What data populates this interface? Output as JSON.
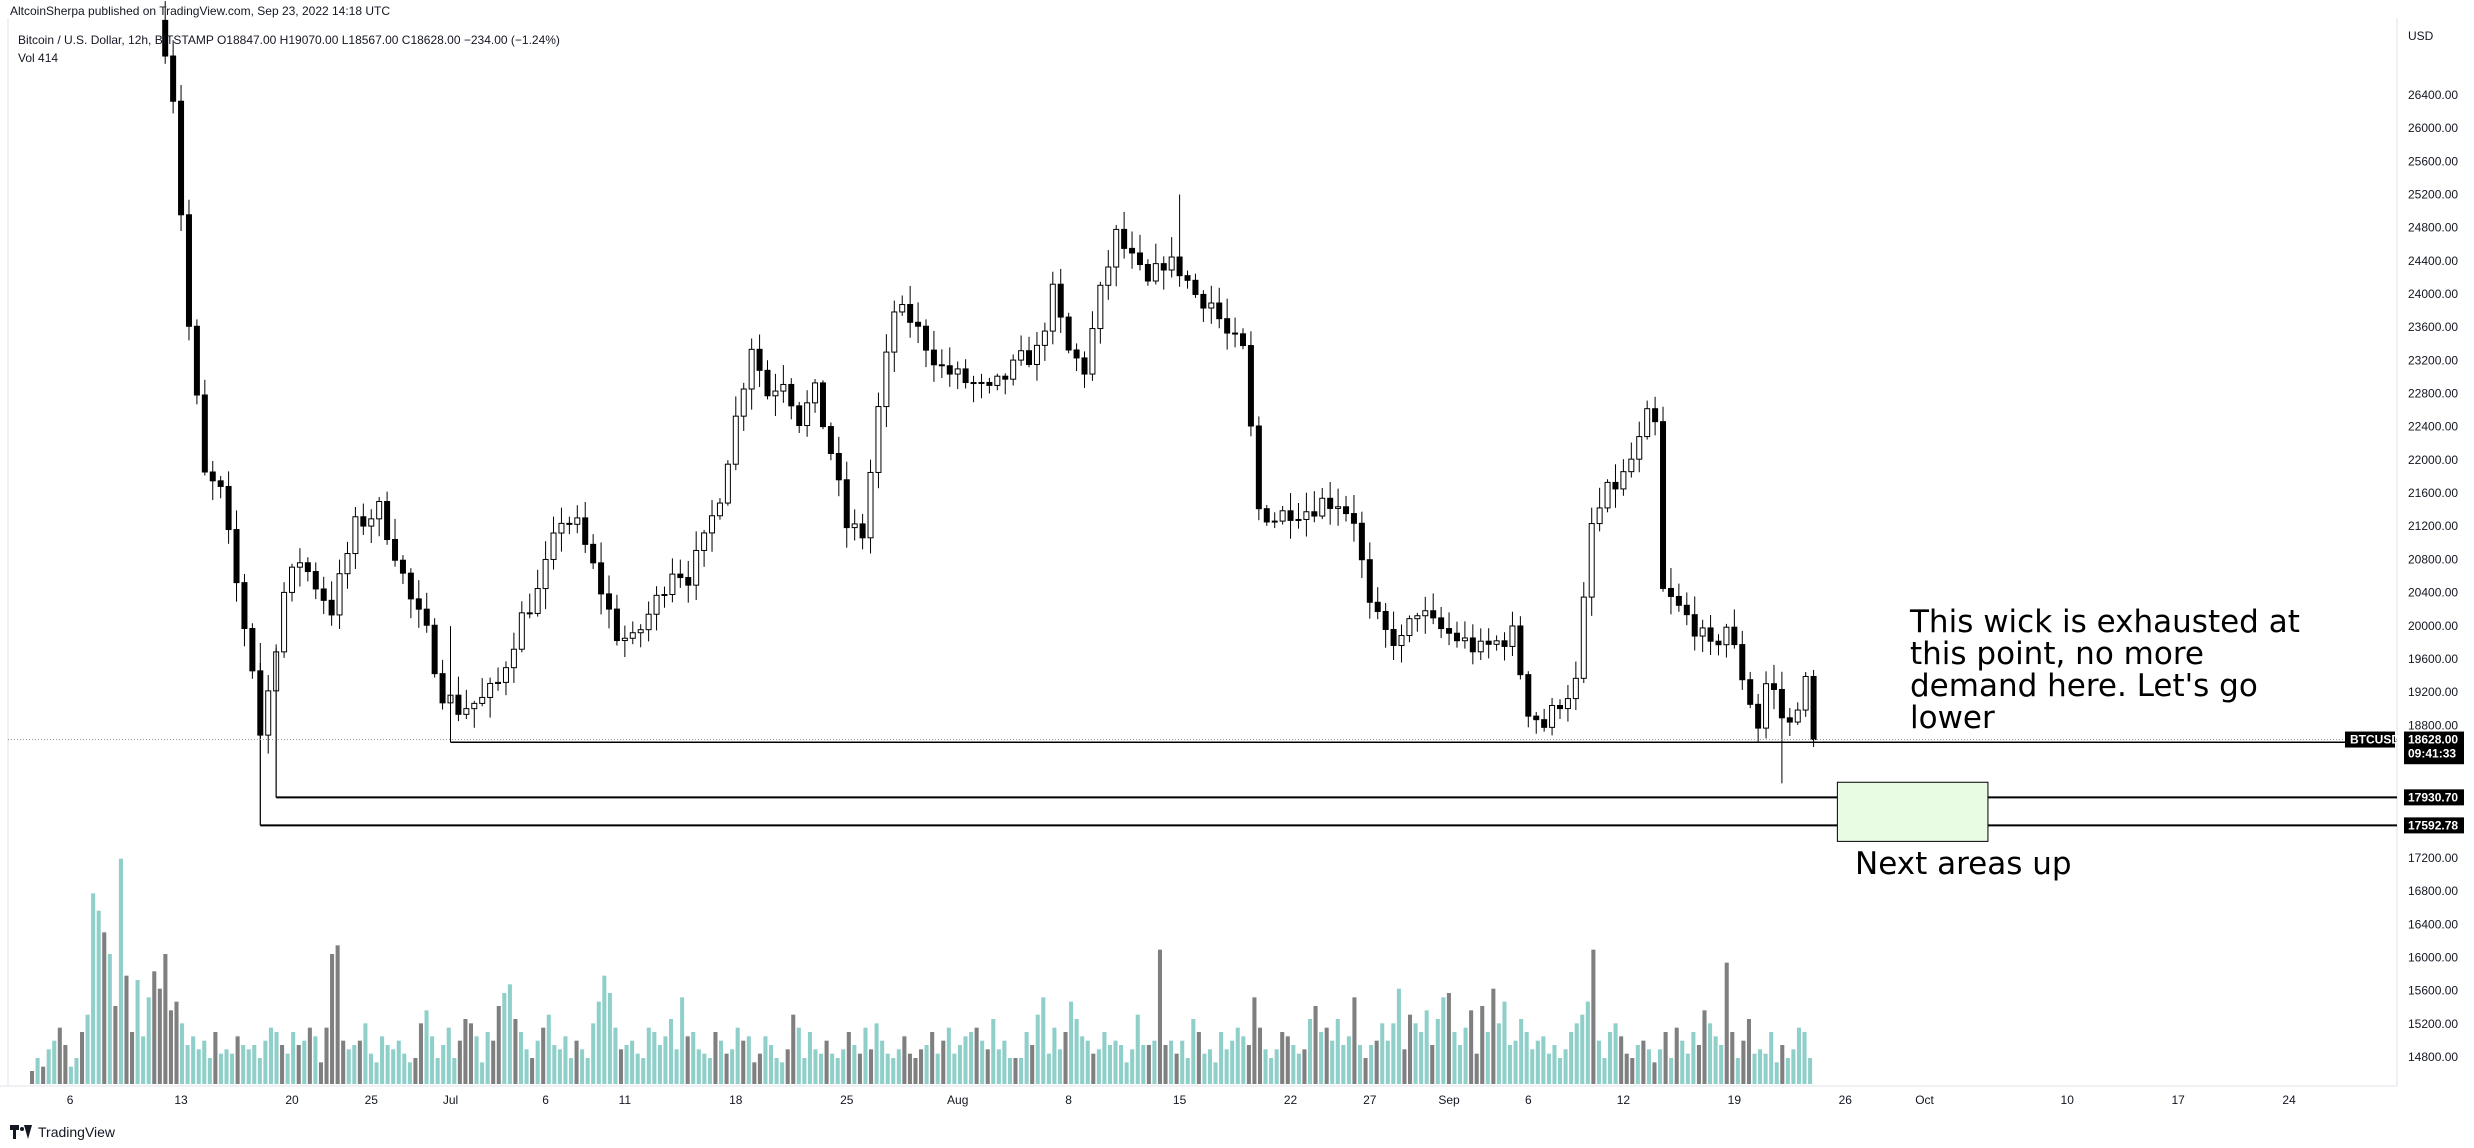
{
  "header": {
    "published_by": "AltcoinSherpa published on TradingView.com, Sep 23, 2022 14:18 UTC",
    "symbol_line": "Bitcoin / U.S. Dollar, 12h, BITSTAMP  O18847.00  H19070.00  L18567.00  C18628.00  −234.00 (−1.24%)",
    "volume_line": "Vol  414"
  },
  "footer": {
    "brand": "TradingView"
  },
  "colors": {
    "up_body": "#ffffff",
    "down_body": "#000000",
    "wick": "#000000",
    "vol_up": "#8fcfc9",
    "vol_down": "#7f7f7f",
    "zone_fill": "#e8fbe3",
    "zone_stroke": "#000000"
  },
  "chart_data": {
    "type": "candlestick",
    "symbol": "BTCUSD",
    "interval": "12h",
    "exchange": "BITSTAMP",
    "currency_label": "USD",
    "ylim": [
      14200,
      27200
    ],
    "y_ticks": [
      "26400.00",
      "26000.00",
      "25600.00",
      "25200.00",
      "24800.00",
      "24400.00",
      "24000.00",
      "23600.00",
      "23200.00",
      "22800.00",
      "22400.00",
      "22000.00",
      "21600.00",
      "21200.00",
      "20800.00",
      "20400.00",
      "20000.00",
      "19600.00",
      "19200.00",
      "18800.00",
      "17200.00",
      "16800.00",
      "16400.00",
      "16000.00",
      "15600.00",
      "15200.00",
      "14800.00"
    ],
    "x_ticks": [
      {
        "label": "6",
        "day": 6
      },
      {
        "label": "13",
        "day": 13
      },
      {
        "label": "20",
        "day": 20
      },
      {
        "label": "25",
        "day": 25
      },
      {
        "label": "Jul",
        "day": 30
      },
      {
        "label": "6",
        "day": 36
      },
      {
        "label": "11",
        "day": 41
      },
      {
        "label": "18",
        "day": 48
      },
      {
        "label": "25",
        "day": 55
      },
      {
        "label": "Aug",
        "day": 62
      },
      {
        "label": "8",
        "day": 69
      },
      {
        "label": "15",
        "day": 76
      },
      {
        "label": "22",
        "day": 83
      },
      {
        "label": "27",
        "day": 88
      },
      {
        "label": "Sep",
        "day": 93
      },
      {
        "label": "6",
        "day": 98
      },
      {
        "label": "12",
        "day": 104
      },
      {
        "label": "19",
        "day": 111
      },
      {
        "label": "26",
        "day": 118
      },
      {
        "label": "Oct",
        "day": 123
      },
      {
        "label": "10",
        "day": 132
      },
      {
        "label": "17",
        "day": 139
      },
      {
        "label": "24",
        "day": 146
      }
    ],
    "anchors": [
      {
        "day": 12,
        "price": 27000
      },
      {
        "day": 12.5,
        "price": 26400
      },
      {
        "day": 13.5,
        "price": 23600
      },
      {
        "day": 14.5,
        "price": 21800
      },
      {
        "day": 15.5,
        "price": 21600
      },
      {
        "day": 16.5,
        "price": 20500
      },
      {
        "day": 17.5,
        "price": 19500
      },
      {
        "day": 18,
        "price": 18700
      },
      {
        "day": 18.5,
        "price": 19200
      },
      {
        "day": 19.5,
        "price": 20400
      },
      {
        "day": 20.5,
        "price": 20800
      },
      {
        "day": 21.5,
        "price": 20500
      },
      {
        "day": 22.5,
        "price": 20200
      },
      {
        "day": 24,
        "price": 21200
      },
      {
        "day": 25.5,
        "price": 21400
      },
      {
        "day": 26.5,
        "price": 20900
      },
      {
        "day": 27.5,
        "price": 20300
      },
      {
        "day": 28.5,
        "price": 19900
      },
      {
        "day": 29.5,
        "price": 19200
      },
      {
        "day": 30.5,
        "price": 19000
      },
      {
        "day": 32,
        "price": 19100
      },
      {
        "day": 33,
        "price": 19300
      },
      {
        "day": 34.5,
        "price": 20100
      },
      {
        "day": 35.5,
        "price": 20400
      },
      {
        "day": 37,
        "price": 21300
      },
      {
        "day": 38,
        "price": 21200
      },
      {
        "day": 39,
        "price": 20700
      },
      {
        "day": 40.5,
        "price": 19900
      },
      {
        "day": 41.5,
        "price": 19800
      },
      {
        "day": 43,
        "price": 20300
      },
      {
        "day": 44,
        "price": 20700
      },
      {
        "day": 45,
        "price": 20600
      },
      {
        "day": 46,
        "price": 21000
      },
      {
        "day": 47,
        "price": 21600
      },
      {
        "day": 48,
        "price": 22500
      },
      {
        "day": 49,
        "price": 23400
      },
      {
        "day": 50,
        "price": 22800
      },
      {
        "day": 51,
        "price": 23000
      },
      {
        "day": 52,
        "price": 22500
      },
      {
        "day": 53,
        "price": 22800
      },
      {
        "day": 54,
        "price": 22100
      },
      {
        "day": 55,
        "price": 21200
      },
      {
        "day": 56,
        "price": 21100
      },
      {
        "day": 57,
        "price": 22600
      },
      {
        "day": 58,
        "price": 23800
      },
      {
        "day": 59,
        "price": 23700
      },
      {
        "day": 60,
        "price": 23400
      },
      {
        "day": 61,
        "price": 23100
      },
      {
        "day": 62,
        "price": 23000
      },
      {
        "day": 63,
        "price": 22900
      },
      {
        "day": 64,
        "price": 22800
      },
      {
        "day": 65,
        "price": 23000
      },
      {
        "day": 66,
        "price": 23200
      },
      {
        "day": 67,
        "price": 23300
      },
      {
        "day": 68,
        "price": 24000
      },
      {
        "day": 69,
        "price": 23300
      },
      {
        "day": 70,
        "price": 23100
      },
      {
        "day": 71,
        "price": 24000
      },
      {
        "day": 72,
        "price": 24700
      },
      {
        "day": 73,
        "price": 24400
      },
      {
        "day": 74,
        "price": 24100
      },
      {
        "day": 75,
        "price": 24400
      },
      {
        "day": 76,
        "price": 24300
      },
      {
        "day": 77,
        "price": 24000
      },
      {
        "day": 78,
        "price": 23900
      },
      {
        "day": 79,
        "price": 23500
      },
      {
        "day": 80,
        "price": 23300
      },
      {
        "day": 81,
        "price": 21400
      },
      {
        "day": 82,
        "price": 21300
      },
      {
        "day": 83,
        "price": 21400
      },
      {
        "day": 84,
        "price": 21400
      },
      {
        "day": 85,
        "price": 21500
      },
      {
        "day": 86,
        "price": 21500
      },
      {
        "day": 87,
        "price": 21300
      },
      {
        "day": 88,
        "price": 20200
      },
      {
        "day": 89,
        "price": 19900
      },
      {
        "day": 90,
        "price": 19800
      },
      {
        "day": 91,
        "price": 20200
      },
      {
        "day": 92,
        "price": 20000
      },
      {
        "day": 93,
        "price": 19900
      },
      {
        "day": 94,
        "price": 19800
      },
      {
        "day": 95,
        "price": 19700
      },
      {
        "day": 96,
        "price": 19800
      },
      {
        "day": 97,
        "price": 19900
      },
      {
        "day": 98,
        "price": 19000
      },
      {
        "day": 99,
        "price": 18800
      },
      {
        "day": 100,
        "price": 19100
      },
      {
        "day": 101,
        "price": 19300
      },
      {
        "day": 102,
        "price": 21200
      },
      {
        "day": 103,
        "price": 21600
      },
      {
        "day": 104,
        "price": 21800
      },
      {
        "day": 105,
        "price": 22200
      },
      {
        "day": 105.5,
        "price": 22500
      },
      {
        "day": 106,
        "price": 22400
      },
      {
        "day": 106.5,
        "price": 20400
      },
      {
        "day": 107.5,
        "price": 20200
      },
      {
        "day": 108.5,
        "price": 20000
      },
      {
        "day": 109.5,
        "price": 19700
      },
      {
        "day": 110.5,
        "price": 20000
      },
      {
        "day": 111.5,
        "price": 19400
      },
      {
        "day": 112.5,
        "price": 18800
      },
      {
        "day": 113,
        "price": 19300
      },
      {
        "day": 113.5,
        "price": 19200
      },
      {
        "day": 114,
        "price": 18900
      },
      {
        "day": 114.5,
        "price": 18800
      },
      {
        "day": 115,
        "price": 19100
      },
      {
        "day": 115.5,
        "price": 19300
      },
      {
        "day": 116,
        "price": 18628
      }
    ],
    "volume_axis": {
      "max": 60
    },
    "volumes": [
      3,
      6,
      4,
      8,
      10,
      13,
      9,
      4,
      6,
      12,
      16,
      44,
      40,
      35,
      30,
      18,
      52,
      25,
      12,
      24,
      11,
      20,
      26,
      22,
      30,
      17,
      19,
      14,
      9,
      11,
      8,
      10,
      6,
      12,
      7,
      8,
      7,
      11,
      9,
      8,
      9,
      6,
      10,
      13,
      12,
      9,
      7,
      12,
      9,
      10,
      13,
      11,
      5,
      13,
      30,
      32,
      10,
      8,
      9,
      10,
      14,
      7,
      5,
      11,
      9,
      8,
      10,
      7,
      5,
      6,
      14,
      17,
      11,
      6,
      9,
      13,
      6,
      10,
      15,
      14,
      11,
      5,
      12,
      10,
      18,
      21,
      23,
      15,
      12,
      8,
      6,
      10,
      13,
      16,
      9,
      8,
      11,
      6,
      10,
      8,
      6,
      14,
      19,
      25,
      21,
      13,
      8,
      9,
      10,
      7,
      6,
      13,
      12,
      9,
      11,
      15,
      8,
      20,
      11,
      12,
      8,
      7,
      6,
      12,
      10,
      7,
      8,
      13,
      10,
      11,
      5,
      7,
      11,
      9,
      6,
      5,
      8,
      16,
      13,
      6,
      12,
      8,
      7,
      10,
      7,
      6,
      8,
      12,
      9,
      7,
      13,
      8,
      14,
      10,
      7,
      6,
      8,
      11,
      7,
      6,
      8,
      9,
      12,
      7,
      10,
      13,
      7,
      9,
      11,
      12,
      13,
      10,
      8,
      15,
      8,
      10,
      6,
      6,
      6,
      12,
      9,
      16,
      20,
      7,
      13,
      8,
      12,
      19,
      15,
      11,
      10,
      7,
      8,
      12,
      9,
      10,
      9,
      5,
      8,
      16,
      9,
      9,
      10,
      31,
      9,
      10,
      7,
      10,
      6,
      15,
      12,
      7,
      8,
      5,
      12,
      8,
      10,
      13,
      11,
      9,
      20,
      13,
      8,
      6,
      8,
      12,
      11,
      9,
      7,
      8,
      15,
      18,
      12,
      13,
      10,
      15,
      9,
      11,
      20,
      9,
      6,
      9,
      10,
      14,
      10,
      14,
      22,
      8,
      16,
      14,
      12,
      17,
      9,
      15,
      20,
      21,
      12,
      9,
      13,
      17,
      7,
      18,
      12,
      22,
      14,
      19,
      9,
      10,
      15,
      12,
      8,
      10,
      11,
      7,
      9,
      6,
      8,
      12,
      14,
      16,
      19,
      31,
      10,
      6,
      12,
      14,
      11,
      7,
      6,
      9,
      10,
      8,
      5,
      8,
      12,
      6,
      13,
      10,
      7,
      12,
      9,
      17,
      14,
      11,
      9,
      28,
      12,
      6,
      10,
      15,
      7,
      8,
      7,
      12,
      5,
      9,
      6,
      8,
      13,
      12,
      6
    ],
    "levels": [
      {
        "price": 18595.6,
        "label": "18595.60",
        "x_start_day": 30
      },
      {
        "price": 17930.7,
        "label": "17930.70",
        "x_start_day": 19
      },
      {
        "price": 17592.78,
        "label": "17592.78",
        "x_start_day": 18
      }
    ],
    "last_price": {
      "ticker": "BTCUSD",
      "price": 18628.0,
      "label": "18628.00",
      "countdown": "09:41:33"
    },
    "zone": {
      "day_start": 117.5,
      "day_end": 127,
      "price_top": 17920,
      "price_bottom": 17400,
      "label": "Next areas up"
    },
    "annotation": {
      "lines": [
        "This wick is exhausted at",
        "this point, no more",
        "demand here. Let's go",
        "lower"
      ]
    }
  }
}
